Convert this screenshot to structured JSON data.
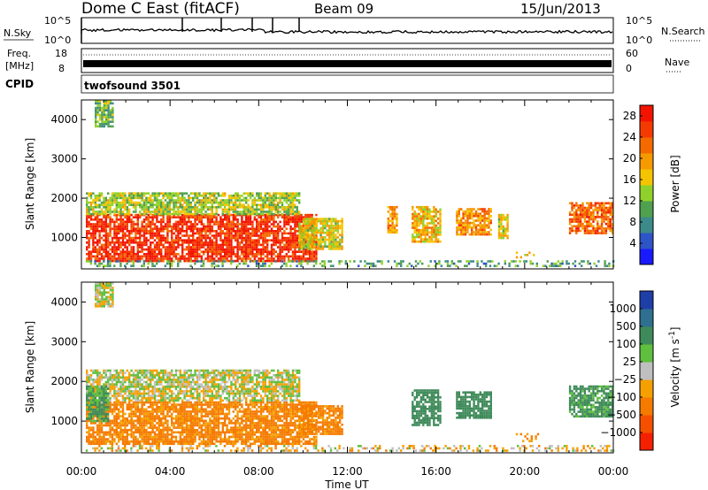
{
  "header": {
    "station": "Dome C East (fitACF)",
    "beam": "Beam 09",
    "date": "15/Jun/2013"
  },
  "top_panels": {
    "nsky": {
      "label": "N.Sky",
      "tick_top": "10^5",
      "tick_bottom": "10^0",
      "right_top": "10^5",
      "right_bottom": "10^0",
      "right_label": "N.Search"
    },
    "freq": {
      "label_1": "Freq.",
      "label_2": "[MHz]",
      "tick_top": "18",
      "tick_bottom": "8",
      "right_top": "60",
      "right_bottom": "0",
      "right_label": "Nave"
    },
    "cpid": {
      "label": "CPID",
      "value": "twofsound 3501"
    }
  },
  "chart_data": [
    {
      "type": "heatmap",
      "title": "",
      "xlabel": "",
      "ylabel": "Slant Range [km]",
      "x_ticks": [
        "00:00",
        "04:00",
        "08:00",
        "12:00",
        "16:00",
        "20:00",
        "00:00"
      ],
      "y_ticks": [
        1000,
        2000,
        3000,
        4000
      ],
      "ylim": [
        200,
        4500
      ],
      "xlim_hours": [
        0,
        24
      ],
      "colorbar": {
        "label": "Power [dB]",
        "ticks": [
          "4",
          "8",
          "12",
          "16",
          "20",
          "24",
          "28"
        ],
        "range": [
          0,
          30
        ],
        "colors": [
          "#1a1aff",
          "#2d55c8",
          "#3d8a8a",
          "#4fa04f",
          "#8fd12a",
          "#f5c400",
          "#f59a00",
          "#f56a00",
          "#f53a00",
          "#f21400"
        ]
      },
      "regions": [
        {
          "t0": 0.2,
          "t1": 10.6,
          "r0": 400,
          "r1": 1600,
          "v": 27
        },
        {
          "t0": 0.2,
          "t1": 9.8,
          "r0": 1600,
          "r1": 2150,
          "v": 14
        },
        {
          "t0": 9.8,
          "t1": 11.8,
          "r0": 700,
          "r1": 1500,
          "v": 16
        },
        {
          "t0": 13.8,
          "t1": 14.2,
          "r0": 1100,
          "r1": 1800,
          "v": 20
        },
        {
          "t0": 14.9,
          "t1": 16.2,
          "r0": 900,
          "r1": 1800,
          "v": 18
        },
        {
          "t0": 16.9,
          "t1": 18.5,
          "r0": 1100,
          "r1": 1750,
          "v": 20
        },
        {
          "t0": 18.8,
          "t1": 19.2,
          "r0": 1000,
          "r1": 1600,
          "v": 16
        },
        {
          "t0": 19.6,
          "t1": 20.6,
          "r0": 500,
          "r1": 700,
          "v": 18
        },
        {
          "t0": 22.0,
          "t1": 24.0,
          "r0": 1100,
          "r1": 1900,
          "v": 23
        },
        {
          "t0": 0.6,
          "t1": 1.4,
          "r0": 3800,
          "r1": 4500,
          "v": 12
        },
        {
          "t0": 0.0,
          "t1": 24.0,
          "r0": 250,
          "r1": 420,
          "v": 10
        }
      ]
    },
    {
      "type": "heatmap",
      "title": "",
      "xlabel": "Time UT",
      "ylabel": "Slant Range [km]",
      "x_ticks": [
        "00:00",
        "04:00",
        "08:00",
        "12:00",
        "16:00",
        "20:00",
        "00:00"
      ],
      "y_ticks": [
        1000,
        2000,
        3000,
        4000
      ],
      "ylim": [
        200,
        4500
      ],
      "xlim_hours": [
        0,
        24
      ],
      "colorbar": {
        "label": "Velocity [m s^-1]",
        "ticks": [
          "1000",
          "500",
          "100",
          "25",
          "−25",
          "−100",
          "−500",
          "−1000"
        ],
        "colors": [
          "#1f3fa8",
          "#2f6f8f",
          "#3f8a5a",
          "#5fbf3f",
          "#bfbfbf",
          "#f5a000",
          "#f57a00",
          "#f55000",
          "#f52000"
        ]
      },
      "regions": [
        {
          "t0": 0.2,
          "t1": 10.6,
          "r0": 400,
          "r1": 1500,
          "v": -150
        },
        {
          "t0": 0.2,
          "t1": 9.8,
          "r0": 1500,
          "r1": 2300,
          "v": 0
        },
        {
          "t0": 0.2,
          "t1": 1.2,
          "r0": 1000,
          "r1": 1900,
          "v": 120
        },
        {
          "t0": 9.8,
          "t1": 11.8,
          "r0": 700,
          "r1": 1400,
          "v": -150
        },
        {
          "t0": 14.9,
          "t1": 16.2,
          "r0": 900,
          "r1": 1800,
          "v": 200
        },
        {
          "t0": 16.9,
          "t1": 18.5,
          "r0": 1100,
          "r1": 1750,
          "v": 300
        },
        {
          "t0": 19.6,
          "t1": 20.6,
          "r0": 500,
          "r1": 700,
          "v": -150
        },
        {
          "t0": 22.0,
          "t1": 24.0,
          "r0": 1100,
          "r1": 1900,
          "v": 150
        },
        {
          "t0": 0.6,
          "t1": 1.4,
          "r0": 3900,
          "r1": 4500,
          "v": 0
        },
        {
          "t0": 0.0,
          "t1": 24.0,
          "r0": 250,
          "r1": 400,
          "v": -50
        }
      ]
    }
  ]
}
